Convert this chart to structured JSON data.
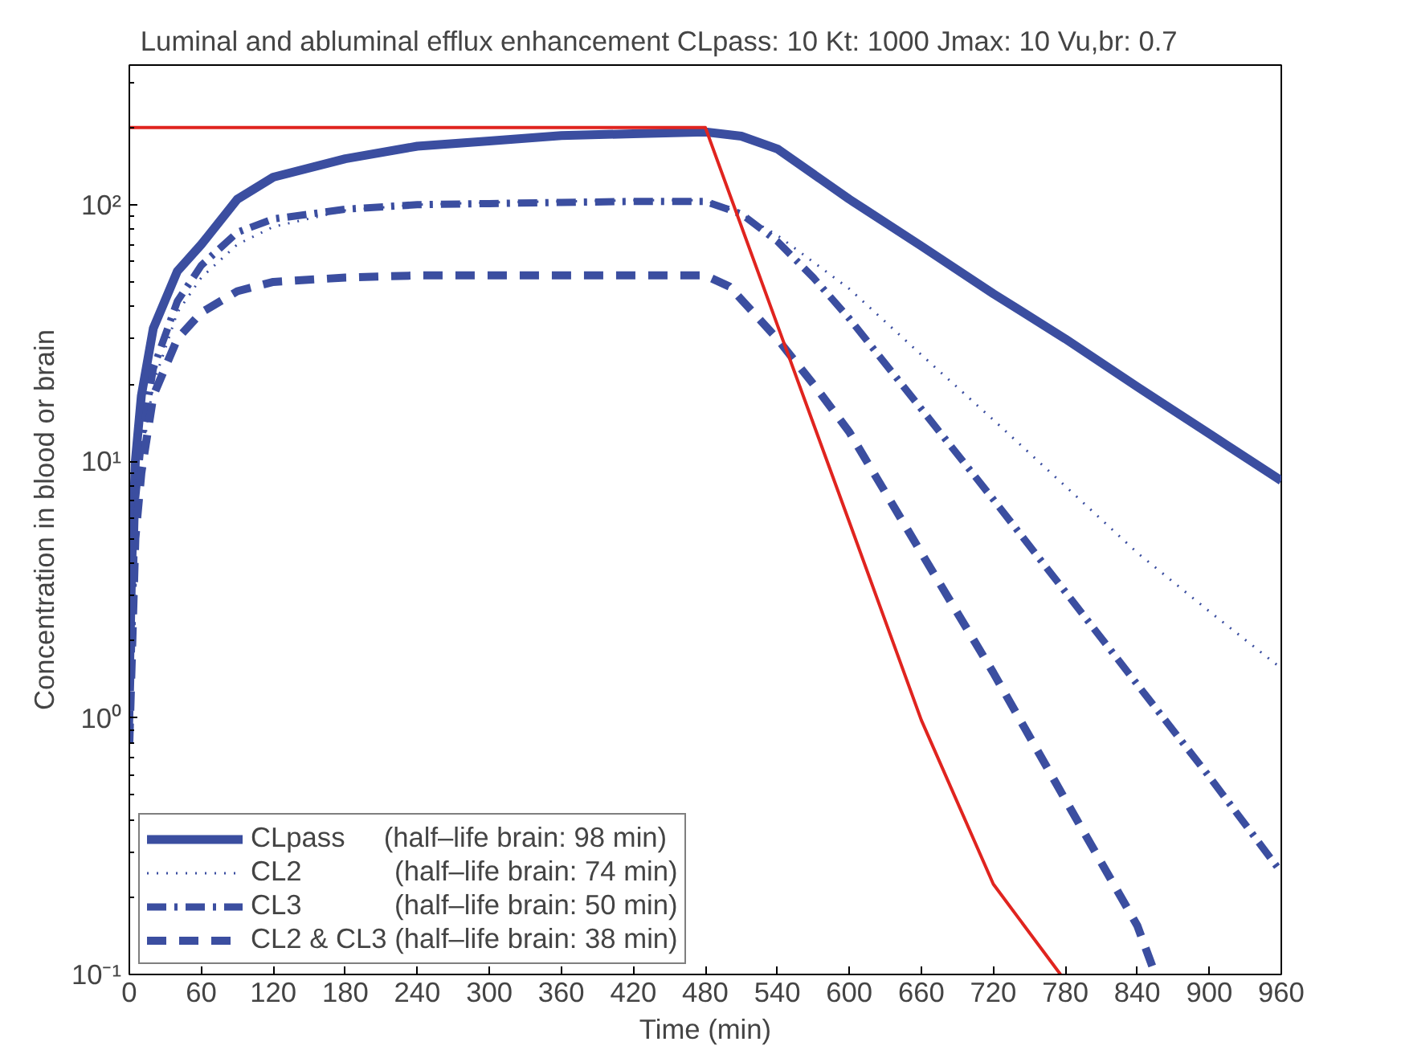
{
  "chart_data": {
    "type": "line",
    "title": "Luminal and abluminal efflux enhancement    CLpass: 10    Kt: 1000    Jmax: 10    Vu,br: 0.7",
    "xlabel": "Time (min)",
    "ylabel": "Concentration in blood or brain",
    "log": "y",
    "xlim": [
      0,
      960
    ],
    "ylim": [
      0.1,
      350
    ],
    "xticks": [
      0,
      60,
      120,
      180,
      240,
      300,
      360,
      420,
      480,
      540,
      600,
      660,
      720,
      780,
      840,
      900,
      960
    ],
    "yticks": [
      {
        "value": 0.1,
        "label": "10⁻¹"
      },
      {
        "value": 1,
        "label": "10⁰"
      },
      {
        "value": 10,
        "label": "10¹"
      },
      {
        "value": 100,
        "label": "10²"
      }
    ],
    "grid": false,
    "legend": "bottom left",
    "series": [
      {
        "name": "CLpass     (half–life brain: 98 min)",
        "color": "#3b4ea0",
        "line_style": "solid",
        "x": [
          0,
          2,
          5,
          10,
          20,
          40,
          60,
          90,
          120,
          180,
          240,
          300,
          360,
          420,
          480,
          510,
          540,
          600,
          660,
          720,
          780,
          840,
          900,
          960
        ],
        "values": [
          1.4,
          4,
          10,
          18,
          33,
          55,
          70,
          105,
          128,
          151,
          169,
          177,
          186,
          189,
          192,
          185,
          165,
          105,
          69,
          45,
          30,
          19.5,
          12.8,
          8.4
        ]
      },
      {
        "name": "CL2            (half–life brain: 74 min)",
        "color": "#3b4ea0",
        "line_style": "dotted",
        "x": [
          0,
          5,
          10,
          20,
          40,
          60,
          90,
          120,
          180,
          240,
          300,
          360,
          420,
          480,
          510,
          540,
          600,
          660,
          720,
          780,
          840,
          900,
          960
        ],
        "values": [
          0.9,
          6,
          10,
          20,
          38,
          52,
          70,
          82,
          95,
          100,
          102,
          103,
          104,
          104,
          92,
          76,
          47,
          26,
          14.5,
          8,
          4.4,
          2.6,
          1.56
        ]
      },
      {
        "name": "CL3            (half–life brain: 50 min)",
        "color": "#3b4ea0",
        "line_style": "dashdot",
        "x": [
          0,
          5,
          10,
          20,
          40,
          60,
          90,
          120,
          180,
          240,
          300,
          360,
          420,
          480,
          510,
          540,
          570,
          600,
          660,
          720,
          780,
          840,
          900,
          960
        ],
        "values": [
          0.9,
          7,
          12,
          23,
          42,
          58,
          78,
          88,
          96,
          100,
          101,
          102,
          103,
          103,
          92,
          72,
          52,
          36,
          16,
          7.1,
          3.1,
          1.35,
          0.59,
          0.25
        ]
      },
      {
        "name": "CL2 & CL3 (half–life brain: 38 min)",
        "color": "#3b4ea0",
        "line_style": "dashed",
        "x": [
          0,
          5,
          10,
          20,
          40,
          60,
          90,
          120,
          180,
          240,
          300,
          360,
          420,
          480,
          500,
          520,
          540,
          570,
          600,
          660,
          720,
          780,
          840,
          855
        ],
        "values": [
          0.8,
          5,
          9,
          18,
          30,
          38,
          46,
          50,
          52,
          53,
          53,
          53,
          53,
          53,
          48,
          38,
          30,
          20,
          13,
          4.4,
          1.5,
          0.48,
          0.155,
          0.1
        ]
      },
      {
        "color": "#e0241f",
        "line_style": "solid",
        "x": [
          0,
          480,
          540,
          600,
          660,
          720,
          776
        ],
        "values": [
          200,
          200,
          34,
          5.8,
          0.98,
          0.225,
          0.1
        ]
      }
    ]
  }
}
